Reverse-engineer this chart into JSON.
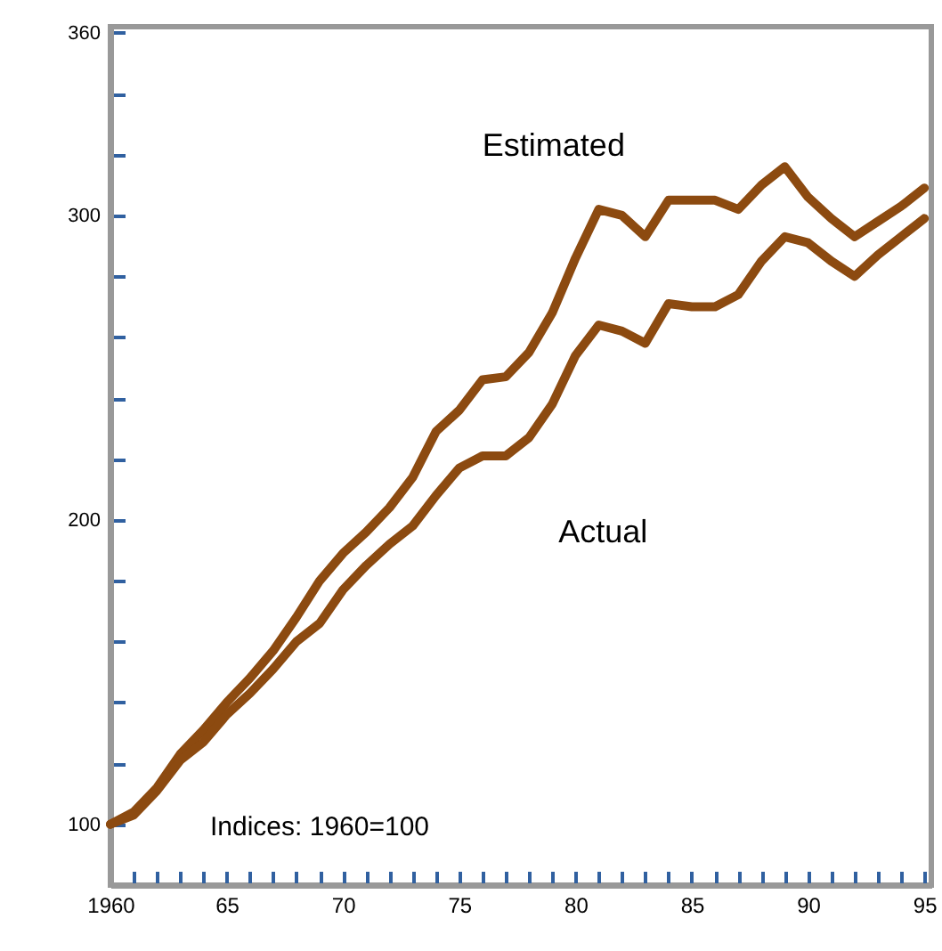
{
  "chart_data": {
    "type": "line",
    "annotations": [
      "Indices: 1960=100"
    ],
    "x": [
      1960,
      1961,
      1962,
      1963,
      1964,
      1965,
      1966,
      1967,
      1968,
      1969,
      1970,
      1971,
      1972,
      1973,
      1974,
      1975,
      1976,
      1977,
      1978,
      1979,
      1980,
      1981,
      1982,
      1983,
      1984,
      1985,
      1986,
      1987,
      1988,
      1989,
      1990,
      1991,
      1992,
      1993,
      1994,
      1995
    ],
    "series": [
      {
        "name": "Estimated",
        "color": "#8c4a10",
        "values": [
          100,
          104,
          112,
          123,
          131,
          140,
          148,
          157,
          168,
          180,
          189,
          196,
          204,
          214,
          229,
          236,
          246,
          247,
          255,
          268,
          286,
          302,
          300,
          293,
          305,
          305,
          305,
          302,
          310,
          316,
          306,
          299,
          293,
          298,
          303,
          309
        ]
      },
      {
        "name": "Actual",
        "color": "#8c4a10",
        "values": [
          100,
          103,
          111,
          121,
          127,
          136,
          143,
          151,
          160,
          166,
          177,
          185,
          192,
          198,
          208,
          217,
          221,
          221,
          227,
          238,
          254,
          264,
          262,
          258,
          271,
          270,
          270,
          274,
          285,
          293,
          291,
          285,
          280,
          287,
          293,
          299
        ]
      }
    ],
    "xlim": [
      1960,
      1995.3
    ],
    "xticks": [
      1960,
      {
        "value": 1961,
        "label": null
      },
      {
        "value": 1962,
        "label": null
      },
      {
        "value": 1963,
        "label": null
      },
      {
        "value": 1964,
        "label": null
      },
      {
        "value": 1965,
        "label": "65"
      },
      {
        "value": 1966,
        "label": null
      },
      {
        "value": 1967,
        "label": null
      },
      {
        "value": 1968,
        "label": null
      },
      {
        "value": 1969,
        "label": null
      },
      {
        "value": 1970,
        "label": "70"
      },
      {
        "value": 1971,
        "label": null
      },
      {
        "value": 1972,
        "label": null
      },
      {
        "value": 1973,
        "label": null
      },
      {
        "value": 1974,
        "label": null
      },
      {
        "value": 1975,
        "label": "75"
      },
      {
        "value": 1976,
        "label": null
      },
      {
        "value": 1977,
        "label": null
      },
      {
        "value": 1978,
        "label": null
      },
      {
        "value": 1979,
        "label": null
      },
      {
        "value": 1980,
        "label": "80"
      },
      {
        "value": 1981,
        "label": null
      },
      {
        "value": 1982,
        "label": null
      },
      {
        "value": 1983,
        "label": null
      },
      {
        "value": 1984,
        "label": null
      },
      {
        "value": 1985,
        "label": "85"
      },
      {
        "value": 1986,
        "label": null
      },
      {
        "value": 1987,
        "label": null
      },
      {
        "value": 1988,
        "label": null
      },
      {
        "value": 1989,
        "label": null
      },
      {
        "value": 1990,
        "label": "90"
      },
      {
        "value": 1991,
        "label": null
      },
      {
        "value": 1992,
        "label": null
      },
      {
        "value": 1993,
        "label": null
      },
      {
        "value": 1994,
        "label": null
      },
      {
        "value": 1995,
        "label": "95"
      }
    ],
    "ylim": [
      80,
      362
    ],
    "yticks": [
      100,
      {
        "value": 120,
        "label": null
      },
      {
        "value": 140,
        "label": null
      },
      {
        "value": 160,
        "label": null
      },
      {
        "value": 180,
        "label": null
      },
      200,
      {
        "value": 220,
        "label": null
      },
      {
        "value": 240,
        "label": null
      },
      {
        "value": 260,
        "label": null
      },
      {
        "value": 280,
        "label": null
      },
      300,
      {
        "value": 320,
        "label": null
      },
      {
        "value": 340,
        "label": null
      },
      360
    ],
    "grid": false,
    "marker": "none",
    "line_style": "solid"
  }
}
